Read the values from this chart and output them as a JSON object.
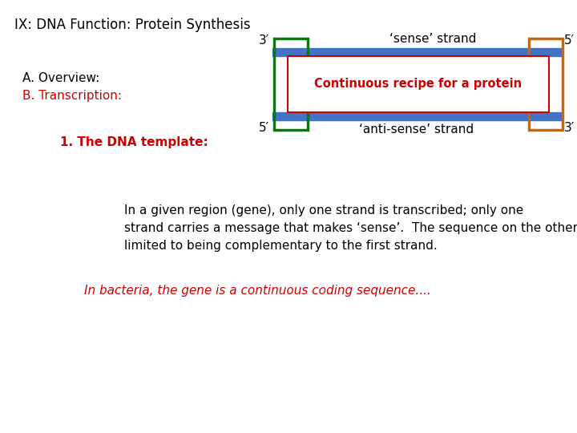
{
  "title": "IX: DNA Function: Protein Synthesis",
  "title_color": "#000000",
  "title_fontsize": 12,
  "bg_color": "#ffffff",
  "sense_strand_label": "‘sense’ strand",
  "antisense_strand_label": "‘anti-sense’ strand",
  "continuous_label": "Continuous recipe for a protein",
  "strand_color": "#4472c4",
  "green_box_color": "#008000",
  "orange_box_color": "#cc6600",
  "red_text_color": "#cc0000",
  "black_color": "#000000",
  "body_text": "In a given region (gene), only one strand is transcribed; only one\nstrand carries a message that makes ‘sense’.  The sequence on the other strand is\nlimited to being complementary to the first strand.",
  "bacteria_text": "In bacteria, the gene is a continuous coding sequence....",
  "body_fontsize": 11,
  "bacteria_fontsize": 11
}
